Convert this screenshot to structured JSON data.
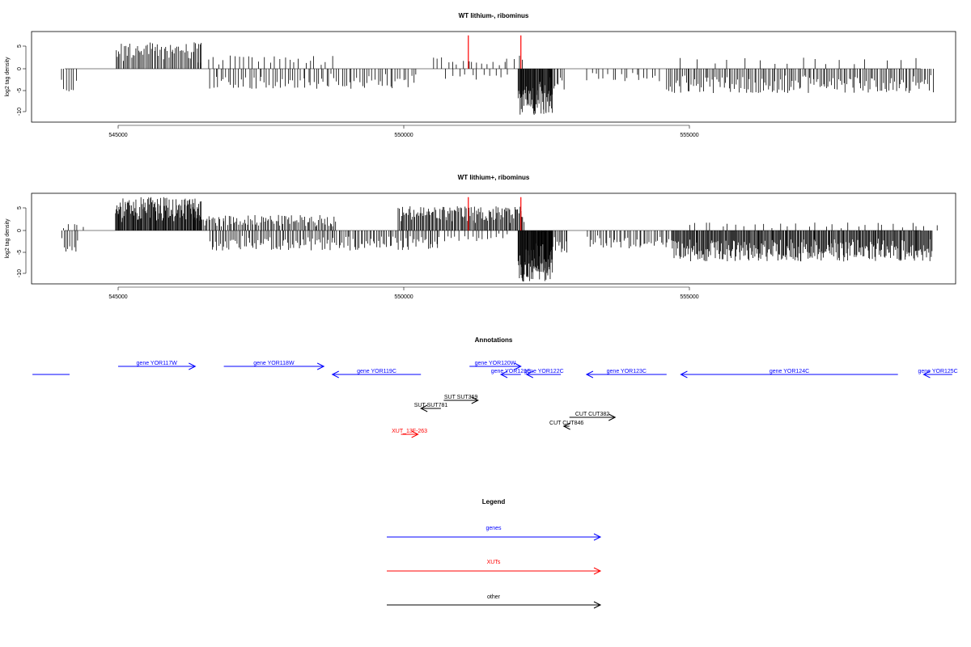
{
  "colors": {
    "genes": "#0000ff",
    "xuts": "#ff0000",
    "other": "#000000",
    "highlight": "#ff0000",
    "bars": "#000000"
  },
  "chart_data": [
    {
      "type": "bar",
      "title": "WT lithium-, ribominus",
      "ylabel": "log2 tag density",
      "xlabel": "",
      "xlim": [
        543500,
        559600
      ],
      "ylim": [
        -12,
        8.5
      ],
      "xticks": [
        "545000",
        "550000",
        "555000"
      ],
      "yticks": [
        "5",
        "0",
        "-5",
        "-10"
      ],
      "highlight_positions": [
        551130,
        552050
      ],
      "highlight_heights": [
        7.5,
        7.5
      ],
      "regions": [
        {
          "from": 544000,
          "to": 544250,
          "sign": -1,
          "max": 5.5,
          "step": 40
        },
        {
          "from": 544950,
          "to": 546450,
          "sign": 1,
          "max": 6.0,
          "step": 25
        },
        {
          "from": 546350,
          "to": 548700,
          "sign": 1,
          "max": 3.0,
          "step": 90
        },
        {
          "from": 546600,
          "to": 550200,
          "sign": -1,
          "max": 4.5,
          "step": 45
        },
        {
          "from": 550450,
          "to": 552150,
          "sign": 1,
          "max": 3.0,
          "step": 90
        },
        {
          "from": 550700,
          "to": 551800,
          "sign": -1,
          "max": 2.5,
          "step": 110
        },
        {
          "from": 552000,
          "to": 552600,
          "sign": -1,
          "max": 10.5,
          "step": 10
        },
        {
          "from": 552550,
          "to": 552800,
          "sign": -1,
          "max": 5.0,
          "step": 30
        },
        {
          "from": 553200,
          "to": 554500,
          "sign": -1,
          "max": 3.0,
          "step": 70
        },
        {
          "from": 554600,
          "to": 559250,
          "sign": -1,
          "max": 5.5,
          "step": 30
        },
        {
          "from": 554800,
          "to": 559000,
          "sign": 1,
          "max": 2.5,
          "step": 250
        }
      ]
    },
    {
      "type": "bar",
      "title": "WT lithium+, ribominus",
      "ylabel": "log2 tag density",
      "xlabel": "",
      "xlim": [
        543500,
        559600
      ],
      "ylim": [
        -12,
        8.5
      ],
      "xticks": [
        "545000",
        "550000",
        "555000"
      ],
      "yticks": [
        "5",
        "0",
        "-5",
        "-10"
      ],
      "highlight_positions": [
        551130,
        552050
      ],
      "highlight_heights": [
        7.5,
        7.5
      ],
      "regions": [
        {
          "from": 544000,
          "to": 544300,
          "sign": -1,
          "max": 5.0,
          "step": 35
        },
        {
          "from": 544000,
          "to": 544400,
          "sign": 1,
          "max": 1.5,
          "step": 90
        },
        {
          "from": 544950,
          "to": 546450,
          "sign": 1,
          "max": 7.5,
          "step": 12
        },
        {
          "from": 546300,
          "to": 548800,
          "sign": 1,
          "max": 3.5,
          "step": 25
        },
        {
          "from": 546600,
          "to": 550600,
          "sign": -1,
          "max": 4.5,
          "step": 30
        },
        {
          "from": 549900,
          "to": 552100,
          "sign": 1,
          "max": 5.5,
          "step": 18
        },
        {
          "from": 550600,
          "to": 551800,
          "sign": -1,
          "max": 2.5,
          "step": 70
        },
        {
          "from": 552000,
          "to": 552600,
          "sign": -1,
          "max": 11.5,
          "step": 8
        },
        {
          "from": 552550,
          "to": 552850,
          "sign": -1,
          "max": 5.0,
          "step": 25
        },
        {
          "from": 553200,
          "to": 554700,
          "sign": -1,
          "max": 4.0,
          "step": 35
        },
        {
          "from": 554700,
          "to": 559250,
          "sign": -1,
          "max": 7.0,
          "step": 15
        },
        {
          "from": 554900,
          "to": 559250,
          "sign": 1,
          "max": 1.8,
          "step": 150
        }
      ]
    }
  ],
  "annotations": {
    "title": "Annotations",
    "features": [
      {
        "label": "",
        "type": "genes",
        "from": 543500,
        "to": 544150,
        "dir": "none",
        "row": 1
      },
      {
        "label": "gene YOR117W",
        "type": "genes",
        "from": 545000,
        "to": 546350,
        "dir": "right",
        "row": 0
      },
      {
        "label": "gene YOR118W",
        "type": "genes",
        "from": 546850,
        "to": 548600,
        "dir": "right",
        "row": 0
      },
      {
        "label": "gene YOR119C",
        "type": "genes",
        "from": 548750,
        "to": 550300,
        "dir": "left",
        "row": 1
      },
      {
        "label": "gene YOR120W",
        "type": "genes",
        "from": 551150,
        "to": 552050,
        "dir": "right",
        "row": 0
      },
      {
        "label": "gene YOR121C",
        "type": "genes",
        "from": 551700,
        "to": 552050,
        "dir": "left",
        "row": 1
      },
      {
        "label": "gene YOR122C",
        "type": "genes",
        "from": 552150,
        "to": 552750,
        "dir": "left",
        "row": 1
      },
      {
        "label": "gene YOR123C",
        "type": "genes",
        "from": 553200,
        "to": 554600,
        "dir": "left",
        "row": 1
      },
      {
        "label": "gene YOR124C",
        "type": "genes",
        "from": 554850,
        "to": 558650,
        "dir": "left",
        "row": 1
      },
      {
        "label": "gene YOR125C",
        "type": "genes",
        "from": 559100,
        "to": 559600,
        "dir": "left",
        "row": 1
      },
      {
        "label": "SUT SUT369",
        "type": "other",
        "from": 550700,
        "to": 551300,
        "dir": "right",
        "row": 2
      },
      {
        "label": "SUT SUT781",
        "type": "other",
        "from": 550300,
        "to": 550650,
        "dir": "left",
        "row": 3
      },
      {
        "label": "CUT CUT382",
        "type": "other",
        "from": 552900,
        "to": 553700,
        "dir": "right",
        "row": 4
      },
      {
        "label": "CUT CUT846",
        "type": "other",
        "from": 552800,
        "to": 552900,
        "dir": "left",
        "row": 5
      },
      {
        "label": "XUT_13F-263",
        "type": "xuts",
        "from": 549950,
        "to": 550250,
        "dir": "right",
        "row": 6
      }
    ]
  },
  "legend": {
    "title": "Legend",
    "items": [
      {
        "label": "genes",
        "type": "genes"
      },
      {
        "label": "XUTs",
        "type": "xuts"
      },
      {
        "label": "other",
        "type": "other"
      }
    ]
  }
}
